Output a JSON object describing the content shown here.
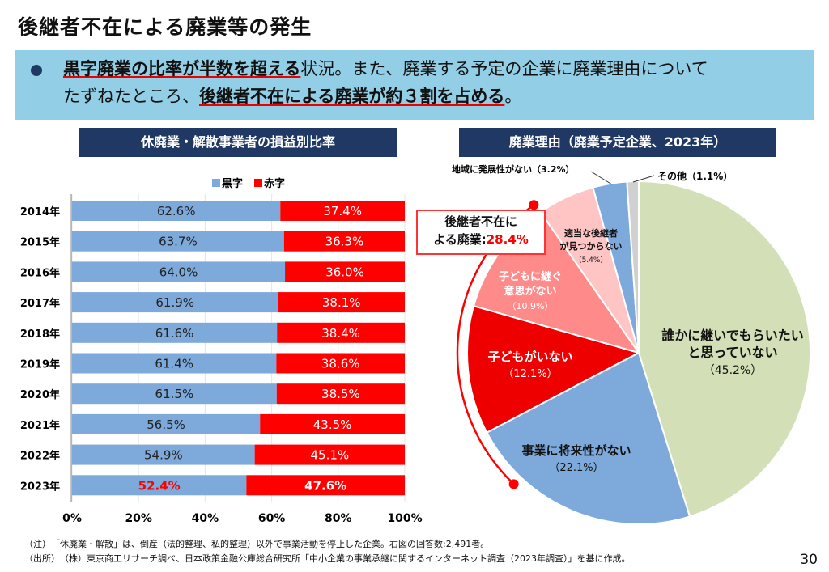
{
  "title": "後継者不在による廃業等の発生",
  "banner": {
    "p1": "黒字廃業の比率が半数を超える",
    "p2": "状況。また、廃業する予定の企業に廃業理由について",
    "p3": "たずねたところ、",
    "p4": "後継者不在による廃業が約３割を占める",
    "p5": "。"
  },
  "left_header": "休廃業・解散事業者の損益別比率",
  "right_header": "廃業理由（廃業予定企業、2023年）",
  "callout": {
    "line1": "後継者不在に",
    "line2": "よる廃業:",
    "value": "28.4%"
  },
  "notes": {
    "note1": "（注）　「休廃業・解散」は、倒産（法的整理、私的整理）以外で事業活動を停止した企業。右図の回答数:2,491者。",
    "note2": "（出所）　（株）東京商工リサーチ調べ、日本政策金融公庫総合研究所「中小企業の事業承継に関するインターネット調査（2023年調査）」を基に作成。"
  },
  "page_number": "30",
  "chart_data": [
    {
      "type": "bar",
      "stacked": true,
      "orientation": "horizontal",
      "categories": [
        "2014年",
        "2015年",
        "2016年",
        "2017年",
        "2018年",
        "2019年",
        "2020年",
        "2021年",
        "2022年",
        "2023年"
      ],
      "series": [
        {
          "name": "黒字",
          "color": "#7ea9db",
          "values": [
            62.6,
            63.7,
            64.0,
            61.9,
            61.6,
            61.4,
            61.5,
            56.5,
            54.9,
            52.4
          ]
        },
        {
          "name": "赤字",
          "color": "#ff0000",
          "values": [
            37.4,
            36.3,
            36.0,
            38.1,
            38.4,
            38.6,
            38.5,
            43.5,
            45.1,
            47.6
          ]
        }
      ],
      "xlim": [
        0,
        100
      ],
      "xticks": [
        "0%",
        "20%",
        "40%",
        "60%",
        "80%",
        "100%"
      ],
      "legend": "top",
      "grid": true
    },
    {
      "type": "pie",
      "slices": [
        {
          "label": "誰かに継いでもらいたいと思っていない",
          "value": 45.2,
          "color": "#d3e0b7"
        },
        {
          "label": "事業に将来性がない",
          "value": 22.1,
          "color": "#7ea9db"
        },
        {
          "label": "子どもがいない",
          "value": 12.1,
          "color": "#ee0000"
        },
        {
          "label": "子どもに継ぐ意思がない",
          "value": 10.9,
          "color": "#ff8a8a"
        },
        {
          "label": "適当な後継者が見つからない",
          "value": 5.4,
          "color": "#ffc5c5"
        },
        {
          "label": "地域に発展性がない",
          "value": 3.2,
          "color": "#7ea9db"
        },
        {
          "label": "その他",
          "value": 1.1,
          "color": "#d0d0d0"
        }
      ]
    }
  ]
}
